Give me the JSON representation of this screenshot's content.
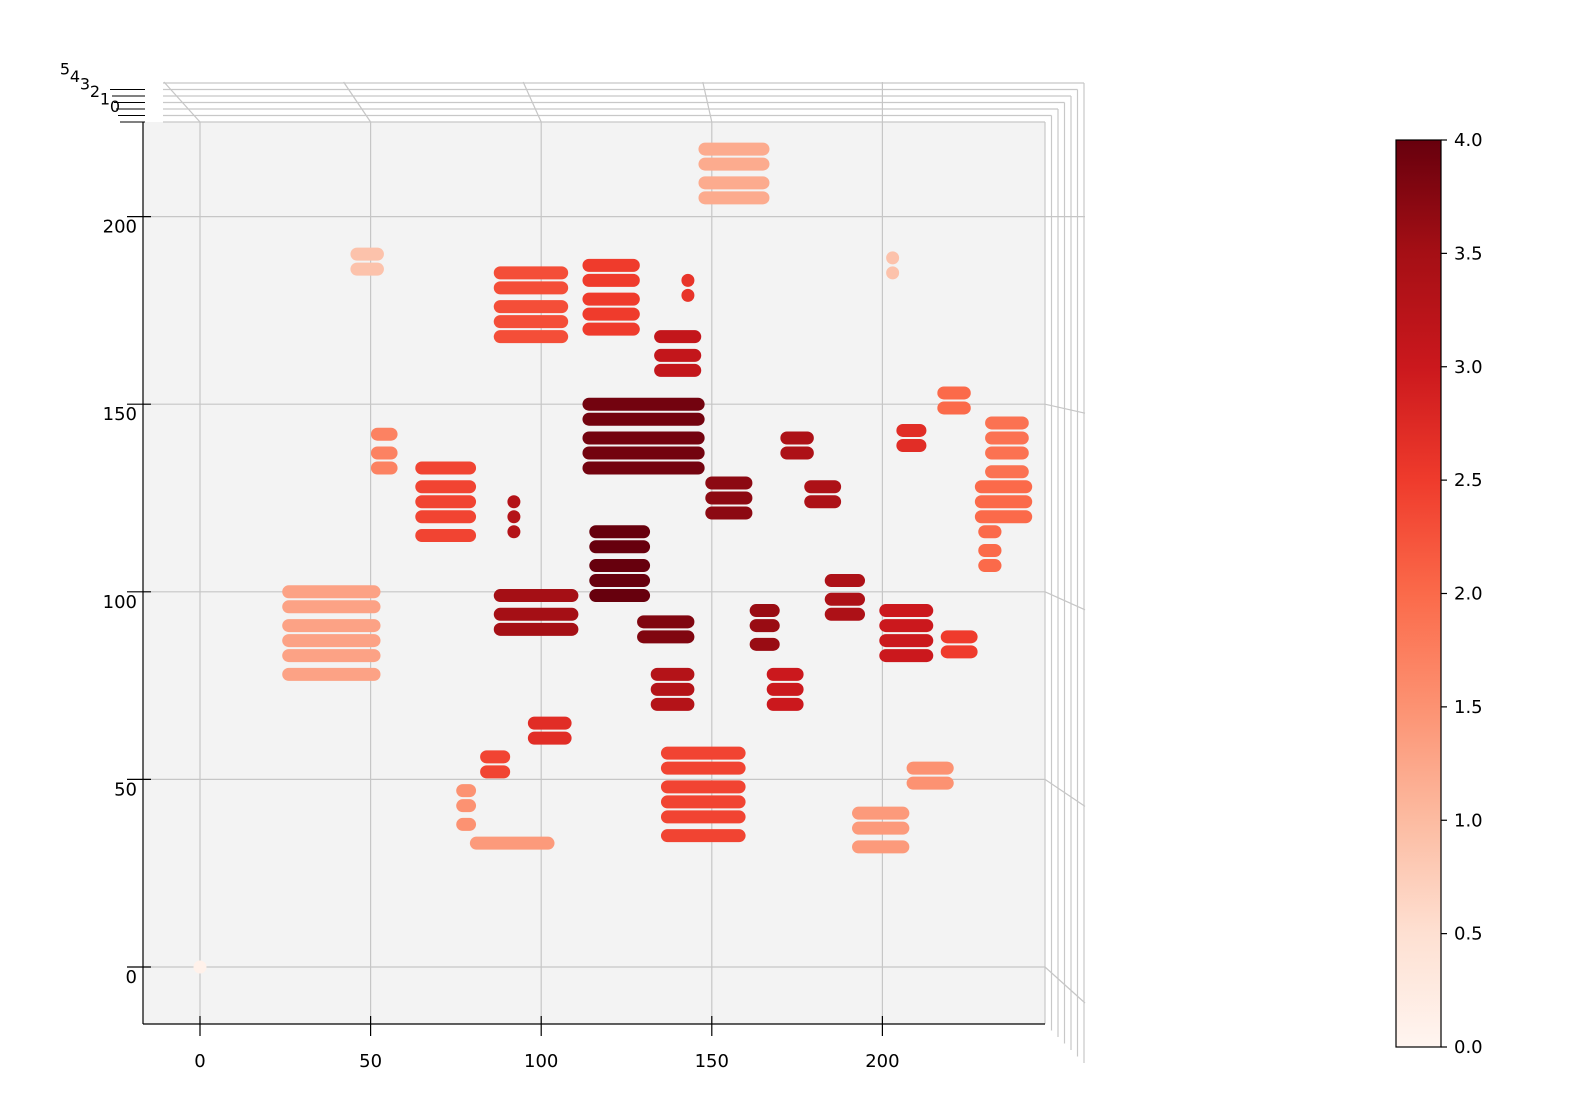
{
  "chart_data": {
    "type": "scatter",
    "subtype": "3d-scatter-top-view",
    "title": "",
    "xlabel": "",
    "ylabel": "",
    "zlabel": "",
    "xlim": [
      -17,
      248
    ],
    "ylim": [
      -15,
      226
    ],
    "x_ticks": [
      0,
      50,
      100,
      150,
      200
    ],
    "y_ticks": [
      0,
      50,
      100,
      150,
      200
    ],
    "z_ticks": [
      0,
      1,
      2,
      3,
      4,
      5
    ],
    "grid": true,
    "colormap": "Reds",
    "colorbar": {
      "min": 0.0,
      "max": 4.0,
      "ticks": [
        0.0,
        0.5,
        1.0,
        1.5,
        2.0,
        2.5,
        3.0,
        3.5,
        4.0
      ],
      "tick_labels": [
        "0.0",
        "0.5",
        "1.0",
        "1.5",
        "2.0",
        "2.5",
        "3.0",
        "3.5",
        "4.0"
      ]
    },
    "clusters": [
      {
        "x0": 148,
        "x1": 165,
        "ys": [
          218,
          214,
          209,
          205
        ],
        "value": 1.2
      },
      {
        "x0": 46,
        "x1": 52,
        "ys": [
          190,
          186
        ],
        "value": 0.9
      },
      {
        "x0": 203,
        "x1": 203,
        "ys": [
          189,
          185
        ],
        "value": 0.9
      },
      {
        "x0": 88,
        "x1": 106,
        "ys": [
          185,
          181,
          176,
          172,
          168
        ],
        "value": 2.3
      },
      {
        "x0": 114,
        "x1": 127,
        "ys": [
          187,
          183,
          178,
          174,
          170
        ],
        "value": 2.5
      },
      {
        "x0": 143,
        "x1": 143,
        "ys": [
          183,
          179
        ],
        "value": 2.6
      },
      {
        "x0": 135,
        "x1": 145,
        "ys": [
          168,
          163,
          159
        ],
        "value": 3.1
      },
      {
        "x0": 114,
        "x1": 146,
        "ys": [
          150,
          146,
          141,
          137,
          133
        ],
        "value": 3.9
      },
      {
        "x0": 52,
        "x1": 56,
        "ys": [
          142,
          137,
          133
        ],
        "value": 1.7
      },
      {
        "x0": 65,
        "x1": 79,
        "ys": [
          133,
          128,
          124,
          120,
          115
        ],
        "value": 2.4
      },
      {
        "x0": 92,
        "x1": 92,
        "ys": [
          124,
          120,
          116
        ],
        "value": 3.3
      },
      {
        "x0": 150,
        "x1": 160,
        "ys": [
          129,
          125,
          121
        ],
        "value": 3.7
      },
      {
        "x0": 172,
        "x1": 178,
        "ys": [
          141,
          137
        ],
        "value": 3.4
      },
      {
        "x0": 179,
        "x1": 186,
        "ys": [
          128,
          124
        ],
        "value": 3.4
      },
      {
        "x0": 206,
        "x1": 211,
        "ys": [
          143,
          139
        ],
        "value": 2.7
      },
      {
        "x0": 218,
        "x1": 224,
        "ys": [
          153,
          149
        ],
        "value": 2.0
      },
      {
        "x0": 232,
        "x1": 241,
        "ys": [
          145,
          141,
          137,
          132
        ],
        "value": 1.9
      },
      {
        "x0": 229,
        "x1": 242,
        "ys": [
          128,
          124,
          120
        ],
        "value": 2.0
      },
      {
        "x0": 230,
        "x1": 233,
        "ys": [
          116,
          111,
          107
        ],
        "value": 2.0
      },
      {
        "x0": 116,
        "x1": 130,
        "ys": [
          116,
          112,
          107,
          103,
          99
        ],
        "value": 4.0
      },
      {
        "x0": 26,
        "x1": 51,
        "ys": [
          100,
          96,
          91,
          87,
          83,
          78
        ],
        "value": 1.3
      },
      {
        "x0": 88,
        "x1": 109,
        "ys": [
          99,
          94,
          90
        ],
        "value": 3.5
      },
      {
        "x0": 130,
        "x1": 143,
        "ys": [
          92,
          88
        ],
        "value": 3.8
      },
      {
        "x0": 163,
        "x1": 168,
        "ys": [
          95,
          91,
          86
        ],
        "value": 3.6
      },
      {
        "x0": 185,
        "x1": 193,
        "ys": [
          103,
          98,
          94
        ],
        "value": 3.4
      },
      {
        "x0": 201,
        "x1": 213,
        "ys": [
          95,
          91,
          87,
          83
        ],
        "value": 3.0
      },
      {
        "x0": 219,
        "x1": 226,
        "ys": [
          88,
          84
        ],
        "value": 2.5
      },
      {
        "x0": 134,
        "x1": 143,
        "ys": [
          78,
          74,
          70
        ],
        "value": 3.3
      },
      {
        "x0": 168,
        "x1": 175,
        "ys": [
          78,
          74,
          70
        ],
        "value": 3.0
      },
      {
        "x0": 98,
        "x1": 107,
        "ys": [
          65,
          61
        ],
        "value": 2.7
      },
      {
        "x0": 84,
        "x1": 89,
        "ys": [
          56,
          52
        ],
        "value": 2.4
      },
      {
        "x0": 137,
        "x1": 158,
        "ys": [
          57,
          53,
          48,
          44,
          40,
          35
        ],
        "value": 2.4
      },
      {
        "x0": 209,
        "x1": 219,
        "ys": [
          53,
          49
        ],
        "value": 1.5
      },
      {
        "x0": 77,
        "x1": 79,
        "ys": [
          47,
          43,
          38
        ],
        "value": 1.5
      },
      {
        "x0": 81,
        "x1": 102,
        "ys": [
          33
        ],
        "value": 1.4
      },
      {
        "x0": 193,
        "x1": 206,
        "ys": [
          41,
          37,
          32
        ],
        "value": 1.4
      },
      {
        "x0": 0,
        "x1": 0,
        "ys": [
          0
        ],
        "value": 0.1
      }
    ]
  }
}
